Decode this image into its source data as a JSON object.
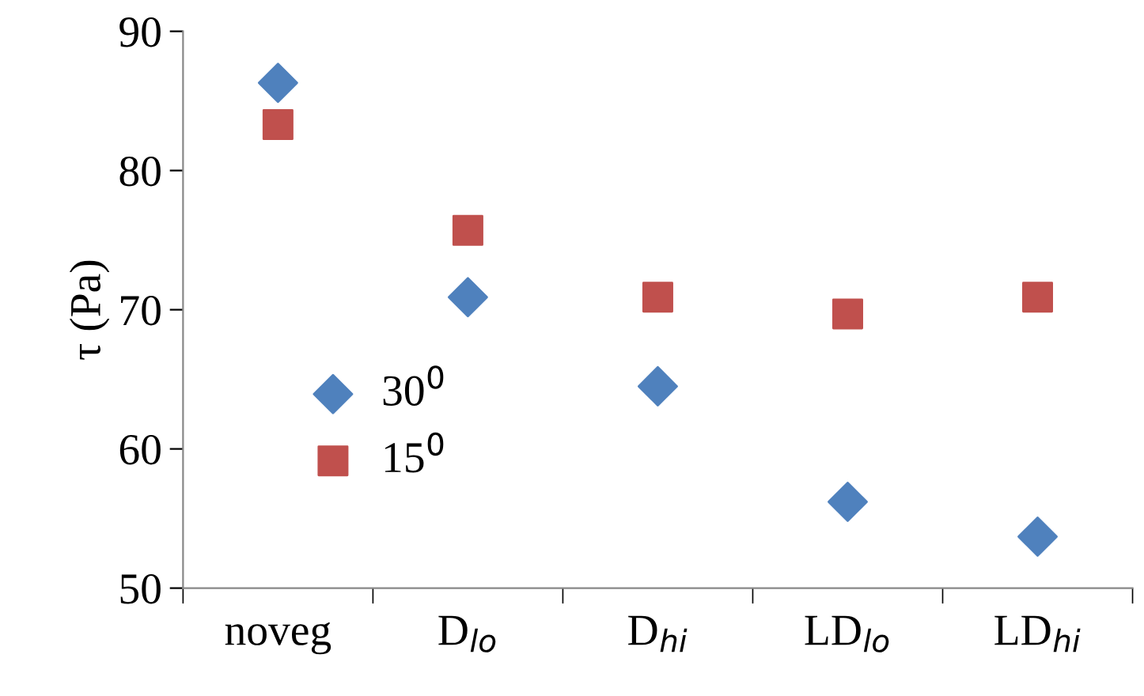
{
  "chart_data": {
    "type": "scatter",
    "ylabel": "τ (Pa)",
    "categories": [
      "noveg",
      "D$_{lo}$",
      "D$_{hi}$",
      "LD$_{lo}$",
      "LD$_{hi}$"
    ],
    "ylim": [
      50,
      90
    ],
    "yticks": [
      50,
      60,
      70,
      80,
      90
    ],
    "grid": false,
    "legend": "bottom left",
    "series": [
      {
        "name": "30$^{0}$",
        "color": "#4f81bd",
        "marker": "diamond",
        "values": [
          86.3,
          70.9,
          64.5,
          56.2,
          53.7
        ]
      },
      {
        "name": "15$^{0}$",
        "color": "#c0504d",
        "marker": "square",
        "values": [
          83.3,
          75.7,
          70.9,
          69.7,
          70.9
        ]
      }
    ]
  }
}
